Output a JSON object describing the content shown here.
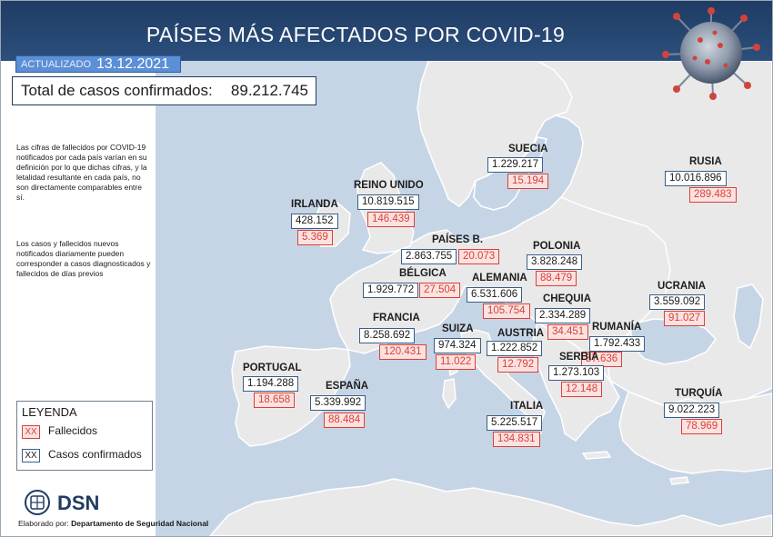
{
  "title": "PAÍSES MÁS AFECTADOS POR COVID-19",
  "updated": {
    "label": "ACTUALIZADO",
    "date": "13.12.2021"
  },
  "total": {
    "label": "Total de casos confirmados:",
    "value": "89.212.745"
  },
  "notes": [
    "Las cifras de fallecidos por COVID-19 notificados por cada país varían en su definición por lo que dichas cifras, y la letalidad resultante en cada país, no son directamente comparables entre sí.",
    "Los casos y fallecidos nuevos notificados diariamente pueden corresponder a casos diagnosticados y fallecidos de días previos"
  ],
  "countries": [
    {
      "name": "SUECIA",
      "cases": "1.229.217",
      "deaths": "15.194"
    },
    {
      "name": "RUSIA",
      "cases": "10.016.896",
      "deaths": "289.483"
    },
    {
      "name": "REINO UNIDO",
      "cases": "10.819.515",
      "deaths": "146.439"
    },
    {
      "name": "IRLANDA",
      "cases": "428.152",
      "deaths": "5.369"
    },
    {
      "name": "PAÍSES B.",
      "cases": "2.863.755",
      "deaths": "20.073"
    },
    {
      "name": "POLONIA",
      "cases": "3.828.248",
      "deaths": "88.479"
    },
    {
      "name": "BÉLGICA",
      "cases": "1.929.772",
      "deaths": "27.504"
    },
    {
      "name": "ALEMANIA",
      "cases": "6.531.606",
      "deaths": "105.754"
    },
    {
      "name": "UCRANIA",
      "cases": "3.559.092",
      "deaths": "91.027"
    },
    {
      "name": "CHEQUIA",
      "cases": "2.334.289",
      "deaths": "34.451"
    },
    {
      "name": "FRANCIA",
      "cases": "8.258.692",
      "deaths": "120.431"
    },
    {
      "name": "SUIZA",
      "cases": "974.324",
      "deaths": "11.022"
    },
    {
      "name": "AUSTRIA",
      "cases": "1.222.852",
      "deaths": "12.792"
    },
    {
      "name": "RUMANÍA",
      "cases": "1.792.433",
      "deaths": "57.636"
    },
    {
      "name": "SERBIA",
      "cases": "1.273.103",
      "deaths": "12.148"
    },
    {
      "name": "PORTUGAL",
      "cases": "1.194.288",
      "deaths": "18.658"
    },
    {
      "name": "ESPAÑA",
      "cases": "5.339.992",
      "deaths": "88.484"
    },
    {
      "name": "ITALIA",
      "cases": "5.225.517",
      "deaths": "134.831"
    },
    {
      "name": "TURQUÍA",
      "cases": "9.022.223",
      "deaths": "78.969"
    }
  ],
  "legend": {
    "title": "LEYENDA",
    "deaths_swatch": "XX",
    "deaths_label": "Fallecidos",
    "cases_swatch": "XX",
    "cases_label": "Casos confirmados"
  },
  "brand": {
    "name": "DSN"
  },
  "footer": {
    "prefix": "Elaborado por:",
    "org": "Departamento de Seguridad Nacional"
  },
  "colors": {
    "header": "#1f3c63",
    "sea": "#c6d5e6",
    "land": "#e9e9ea",
    "deaths": "#d9413a",
    "cases": "#3a5f86",
    "accent": "#5b8fd6"
  }
}
